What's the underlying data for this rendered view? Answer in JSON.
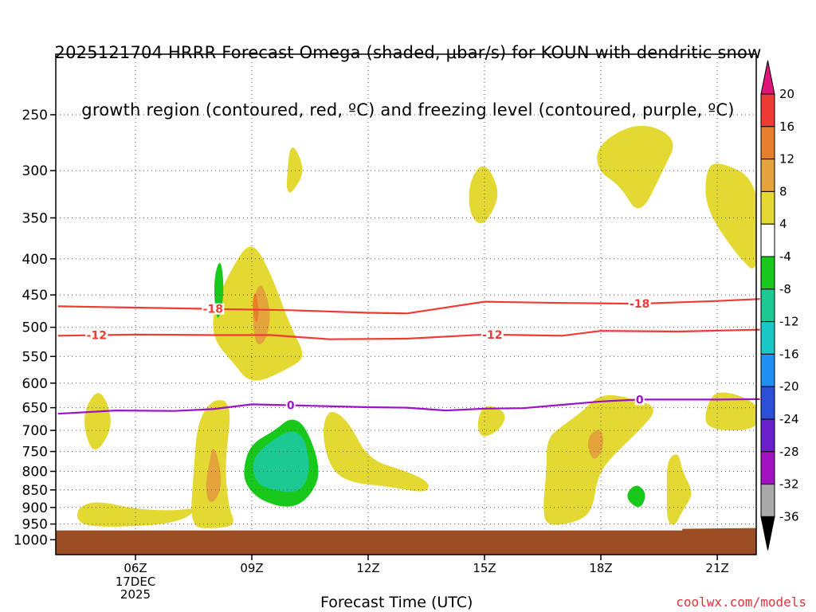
{
  "title": {
    "line1": "2025121704 HRRR Forecast Omega (shaded, μbar/s) for KOUN with dendritic snow",
    "line2": "growth region (contoured, red, ºC) and freezing level (contoured, purple, ºC)"
  },
  "credit": "coolwx.com/models",
  "chart_data": {
    "type": "time-height cross-section",
    "xlabel": "Forecast Time (UTC)",
    "x_ticks": [
      {
        "label": "06Z",
        "sub": [
          "17DEC",
          "2025"
        ]
      },
      {
        "label": "09Z",
        "sub": []
      },
      {
        "label": "12Z",
        "sub": []
      },
      {
        "label": "15Z",
        "sub": []
      },
      {
        "label": "18Z",
        "sub": []
      },
      {
        "label": "21Z",
        "sub": []
      }
    ],
    "x_range_hours": [
      4.0,
      22.1
    ],
    "y_ticks": [
      "250",
      "300",
      "350",
      "400",
      "450",
      "500",
      "550",
      "600",
      "650",
      "700",
      "750",
      "800",
      "850",
      "900",
      "950",
      "1000"
    ],
    "y_range_hpa": [
      200,
      1040
    ],
    "ground_level_hpa": 965,
    "contours": [
      {
        "name": "-18",
        "color": "#ef3a36",
        "labels": [
          {
            "x": 8.0,
            "text": "-18"
          },
          {
            "x": 19.0,
            "text": "-18"
          }
        ],
        "points": [
          [
            4.0,
            467
          ],
          [
            6.0,
            469
          ],
          [
            8.0,
            471
          ],
          [
            10.0,
            473
          ],
          [
            12.0,
            477
          ],
          [
            13.0,
            478
          ],
          [
            15.0,
            460
          ],
          [
            17.0,
            462
          ],
          [
            19.0,
            463
          ],
          [
            21.0,
            459
          ],
          [
            22.1,
            456
          ]
        ]
      },
      {
        "name": "-12",
        "color": "#ef3a36",
        "labels": [
          {
            "x": 5.0,
            "text": "-12"
          },
          {
            "x": 15.2,
            "text": "-12"
          }
        ],
        "points": [
          [
            4.0,
            514
          ],
          [
            6.0,
            512
          ],
          [
            8.0,
            513
          ],
          [
            9.5,
            513
          ],
          [
            11.0,
            520
          ],
          [
            13.0,
            519
          ],
          [
            15.0,
            512
          ],
          [
            16.0,
            513
          ],
          [
            17.0,
            514
          ],
          [
            18.0,
            506
          ],
          [
            20.0,
            507
          ],
          [
            22.1,
            504
          ]
        ]
      },
      {
        "name": "0",
        "color": "#9a12c9",
        "labels": [
          {
            "x": 10.0,
            "text": "0"
          },
          {
            "x": 19.0,
            "text": "0"
          }
        ],
        "points": [
          [
            4.0,
            663
          ],
          [
            5.5,
            656
          ],
          [
            7.0,
            657
          ],
          [
            8.0,
            653
          ],
          [
            9.0,
            643
          ],
          [
            10.5,
            646
          ],
          [
            12.0,
            649
          ],
          [
            13.0,
            650
          ],
          [
            14.0,
            656
          ],
          [
            15.0,
            652
          ],
          [
            16.0,
            651
          ],
          [
            17.0,
            644
          ],
          [
            18.0,
            637
          ],
          [
            19.0,
            633
          ],
          [
            21.0,
            633
          ],
          [
            22.1,
            632
          ]
        ]
      }
    ],
    "shaded_regions": [
      {
        "value_range": [
          4,
          8
        ],
        "color": "#e4d832",
        "points": [
          [
            4.6,
            670
          ],
          [
            5.0,
            610
          ],
          [
            5.3,
            640
          ],
          [
            5.4,
            700
          ],
          [
            4.9,
            765
          ]
        ]
      },
      {
        "value_range": [
          4,
          8
        ],
        "color": "#e4d832",
        "points": [
          [
            4.5,
            900
          ],
          [
            5.0,
            880
          ],
          [
            6.0,
            905
          ],
          [
            7.0,
            910
          ],
          [
            7.6,
            900
          ],
          [
            7.3,
            935
          ],
          [
            6.5,
            955
          ],
          [
            5.0,
            960
          ],
          [
            4.5,
            945
          ]
        ]
      },
      {
        "value_range": [
          4,
          8
        ],
        "color": "#e4d832",
        "points": [
          [
            7.4,
            960
          ],
          [
            7.5,
            800
          ],
          [
            7.6,
            680
          ],
          [
            8.0,
            630
          ],
          [
            8.5,
            640
          ],
          [
            8.3,
            780
          ],
          [
            8.4,
            900
          ],
          [
            8.6,
            955
          ],
          [
            8.0,
            965
          ]
        ]
      },
      {
        "value_range": [
          8,
          12
        ],
        "color": "#e5a43b",
        "points": [
          [
            7.8,
            840
          ],
          [
            7.9,
            780
          ],
          [
            8.0,
            730
          ],
          [
            8.2,
            790
          ],
          [
            8.2,
            860
          ],
          [
            7.9,
            895
          ]
        ]
      },
      {
        "value_range": [
          4,
          8
        ],
        "color": "#e4d832",
        "points": [
          [
            8.0,
            470
          ],
          [
            8.5,
            410
          ],
          [
            9.0,
            375
          ],
          [
            9.5,
            420
          ],
          [
            10.0,
            500
          ],
          [
            10.4,
            550
          ],
          [
            10.0,
            570
          ],
          [
            9.0,
            605
          ],
          [
            8.5,
            560
          ],
          [
            8.0,
            520
          ]
        ]
      },
      {
        "value_range": [
          8,
          12
        ],
        "color": "#e5a43b",
        "points": [
          [
            9.0,
            475
          ],
          [
            9.2,
            425
          ],
          [
            9.5,
            470
          ],
          [
            9.4,
            520
          ],
          [
            9.1,
            535
          ]
        ]
      },
      {
        "value_range": [
          12,
          16
        ],
        "color": "#e87f2c",
        "points": [
          [
            9.0,
            465
          ],
          [
            9.1,
            440
          ],
          [
            9.2,
            480
          ],
          [
            9.1,
            497
          ]
        ]
      },
      {
        "value_range": [
          -8,
          -4
        ],
        "color": "#18c81a",
        "points": [
          [
            8.0,
            430
          ],
          [
            8.2,
            395
          ],
          [
            8.3,
            450
          ],
          [
            8.1,
            500
          ]
        ]
      },
      {
        "value_range": [
          -8,
          -4
        ],
        "color": "#18c81a",
        "points": [
          [
            8.8,
            780
          ],
          [
            9.0,
            730
          ],
          [
            9.6,
            700
          ],
          [
            10.0,
            670
          ],
          [
            10.4,
            690
          ],
          [
            10.8,
            800
          ],
          [
            10.5,
            870
          ],
          [
            10.0,
            905
          ],
          [
            9.2,
            880
          ],
          [
            8.8,
            830
          ]
        ]
      },
      {
        "value_range": [
          -12,
          -8
        ],
        "color": "#1dc993",
        "points": [
          [
            9.0,
            780
          ],
          [
            9.2,
            745
          ],
          [
            10.0,
            695
          ],
          [
            10.4,
            720
          ],
          [
            10.5,
            810
          ],
          [
            10.2,
            860
          ],
          [
            9.5,
            850
          ],
          [
            9.1,
            830
          ]
        ]
      },
      {
        "value_range": [
          4,
          8
        ],
        "color": "#e4d832",
        "points": [
          [
            9.9,
            310
          ],
          [
            10.0,
            270
          ],
          [
            10.4,
            300
          ],
          [
            10.0,
            325
          ],
          [
            9.9,
            318
          ]
        ]
      },
      {
        "value_range": [
          4,
          8
        ],
        "color": "#e4d832",
        "points": [
          [
            10.8,
            700
          ],
          [
            11.0,
            650
          ],
          [
            11.5,
            680
          ],
          [
            12.0,
            770
          ],
          [
            13.0,
            800
          ],
          [
            13.6,
            830
          ],
          [
            13.5,
            860
          ],
          [
            12.5,
            840
          ],
          [
            11.5,
            830
          ],
          [
            11.0,
            790
          ]
        ]
      },
      {
        "value_range": [
          4,
          8
        ],
        "color": "#e4d832",
        "points": [
          [
            14.6,
            310
          ],
          [
            15.0,
            290
          ],
          [
            15.4,
            320
          ],
          [
            15.2,
            345
          ],
          [
            14.9,
            360
          ],
          [
            14.6,
            345
          ]
        ]
      },
      {
        "value_range": [
          4,
          8
        ],
        "color": "#e4d832",
        "points": [
          [
            14.8,
            680
          ],
          [
            15.0,
            640
          ],
          [
            15.6,
            660
          ],
          [
            15.4,
            700
          ],
          [
            14.9,
            720
          ]
        ]
      },
      {
        "value_range": [
          4,
          8
        ],
        "color": "#e4d832",
        "points": [
          [
            16.6,
            720
          ],
          [
            17.0,
            690
          ],
          [
            17.5,
            660
          ],
          [
            18.0,
            620
          ],
          [
            18.8,
            630
          ],
          [
            19.5,
            650
          ],
          [
            19.0,
            700
          ],
          [
            18.2,
            770
          ],
          [
            17.9,
            820
          ],
          [
            17.8,
            900
          ],
          [
            17.5,
            940
          ],
          [
            16.6,
            960
          ],
          [
            16.5,
            900
          ],
          [
            16.6,
            800
          ]
        ]
      },
      {
        "value_range": [
          8,
          12
        ],
        "color": "#e5a43b",
        "points": [
          [
            17.6,
            720
          ],
          [
            18.0,
            690
          ],
          [
            18.1,
            740
          ],
          [
            17.8,
            780
          ]
        ]
      },
      {
        "value_range": [
          -8,
          -4
        ],
        "color": "#18c81a",
        "points": [
          [
            18.6,
            870
          ],
          [
            18.9,
            830
          ],
          [
            19.2,
            860
          ],
          [
            19.0,
            910
          ]
        ]
      },
      {
        "value_range": [
          4,
          8
        ],
        "color": "#e4d832",
        "points": [
          [
            17.9,
            275
          ],
          [
            19.0,
            255
          ],
          [
            20.0,
            270
          ],
          [
            19.6,
            300
          ],
          [
            19.0,
            350
          ],
          [
            18.5,
            315
          ],
          [
            17.9,
            300
          ]
        ]
      },
      {
        "value_range": [
          4,
          8
        ],
        "color": "#e4d832",
        "points": [
          [
            19.7,
            770
          ],
          [
            20.0,
            750
          ],
          [
            20.1,
            800
          ],
          [
            20.4,
            860
          ],
          [
            20.1,
            910
          ],
          [
            19.9,
            960
          ],
          [
            19.7,
            940
          ],
          [
            19.7,
            860
          ]
        ]
      },
      {
        "value_range": [
          4,
          8
        ],
        "color": "#e4d832",
        "points": [
          [
            20.7,
            300
          ],
          [
            21.0,
            290
          ],
          [
            22.1,
            310
          ],
          [
            22.1,
            425
          ],
          [
            21.5,
            395
          ],
          [
            20.7,
            340
          ]
        ]
      },
      {
        "value_range": [
          4,
          8
        ],
        "color": "#e4d832",
        "points": [
          [
            20.7,
            650
          ],
          [
            21.0,
            610
          ],
          [
            22.1,
            640
          ],
          [
            22.1,
            700
          ],
          [
            20.7,
            700
          ]
        ]
      }
    ],
    "colorbar": {
      "labels": [
        "20",
        "16",
        "12",
        "8",
        "4",
        "-4",
        "-8",
        "-12",
        "-16",
        "-20",
        "-24",
        "-28",
        "-32",
        "-36"
      ],
      "colors": [
        "#ef3a36",
        "#e87f2c",
        "#e5a43b",
        "#e4d832",
        "#ffffff",
        "#18c81a",
        "#1dc993",
        "#19c7c7",
        "#1e90f5",
        "#2b4fd9",
        "#6a1fcf",
        "#a311c4",
        "#aaaaaa"
      ],
      "top_color": "#e0157a",
      "bottom_color": "#000000"
    },
    "ground_color": "#9c4d24"
  }
}
